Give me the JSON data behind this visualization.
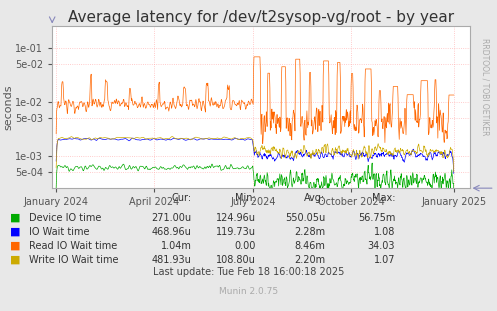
{
  "title": "Average latency for /dev/t2sysop-vg/root - by year",
  "ylabel": "seconds",
  "background_color": "#e8e8e8",
  "plot_bg_color": "#ffffff",
  "grid_color": "#ffaaaa",
  "colors": {
    "green": "#00aa00",
    "blue": "#0000ff",
    "orange": "#ff6600",
    "yellow": "#ccaa00"
  },
  "yticks": [
    0.0005,
    0.001,
    0.005,
    0.01,
    0.05,
    0.1
  ],
  "ytick_labels": [
    "5e-04",
    "1e-03",
    "5e-03",
    "1e-02",
    "5e-02",
    "1e-01"
  ],
  "ylim_low": 0.00025,
  "ylim_high": 0.25,
  "xtick_positions": [
    0.0,
    0.247,
    0.496,
    0.742,
    1.0
  ],
  "xtick_labels": [
    "January 2024",
    "April 2024",
    "July 2024",
    "October 2024",
    "January 2025"
  ],
  "legend_labels": [
    "Device IO time",
    "IO Wait time",
    "Read IO Wait time",
    "Write IO Wait time"
  ],
  "table_headers": [
    "Cur:",
    "Min:",
    "Avg:",
    "Max:"
  ],
  "table_rows": [
    [
      "271.00u",
      "124.96u",
      "550.05u",
      "56.75m"
    ],
    [
      "468.96u",
      "119.73u",
      "2.28m",
      "1.08"
    ],
    [
      "1.04m",
      "0.00",
      "8.46m",
      "34.03"
    ],
    [
      "481.93u",
      "108.80u",
      "2.20m",
      "1.07"
    ]
  ],
  "last_update": "Last update: Tue Feb 18 16:00:18 2025",
  "munin_version": "Munin 2.0.75",
  "rrdtool_text": "RRDTOOL / TOBI OETIKER",
  "title_fontsize": 11,
  "tick_fontsize": 7,
  "legend_fontsize": 7,
  "table_fontsize": 7
}
